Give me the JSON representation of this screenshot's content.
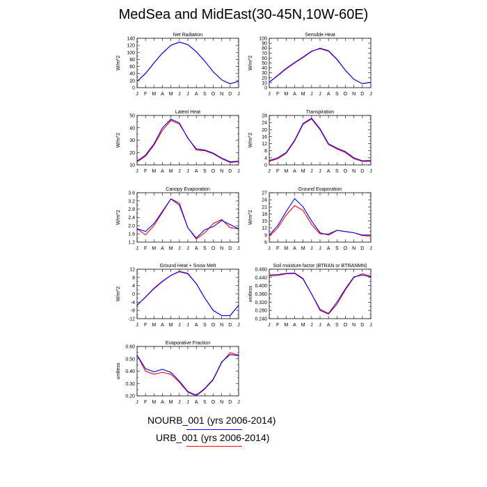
{
  "page": {
    "title": "MedSea and MidEast(30-45N,10W-60E)"
  },
  "legend": [
    {
      "label": "NOURB_001 (yrs 2006-2014)",
      "color": "#0000ff"
    },
    {
      "label": "URB_001 (yrs 2006-2014)",
      "color": "#ff0000"
    }
  ],
  "chart_data": [
    {
      "type": "line",
      "title": "Net Radiation",
      "ylabel": "W/m^2",
      "x": [
        "J",
        "F",
        "M",
        "A",
        "M",
        "J",
        "J",
        "A",
        "S",
        "O",
        "N",
        "D",
        "J"
      ],
      "ylim": [
        0,
        140
      ],
      "yticks": [
        "0",
        "20",
        "40",
        "60",
        "80",
        "100",
        "120",
        "140"
      ],
      "yticks_minor": 1,
      "series": [
        {
          "color": "#ff0000",
          "values": [
            18,
            40,
            70,
            98,
            120,
            129,
            122,
            102,
            75,
            45,
            22,
            11,
            18
          ]
        },
        {
          "color": "#0000ff",
          "values": [
            18,
            40,
            70,
            98,
            120,
            129,
            122,
            102,
            75,
            45,
            22,
            11,
            18
          ]
        }
      ]
    },
    {
      "type": "line",
      "title": "Sensible Heat",
      "ylabel": "W/m^2",
      "x": [
        "J",
        "F",
        "M",
        "A",
        "M",
        "J",
        "J",
        "A",
        "S",
        "O",
        "N",
        "D",
        "J"
      ],
      "ylim": [
        0,
        100
      ],
      "yticks": [
        "0",
        "10",
        "20",
        "30",
        "40",
        "50",
        "60",
        "70",
        "80",
        "90",
        "100"
      ],
      "yticks_minor": 0,
      "series": [
        {
          "color": "#ff0000",
          "values": [
            11,
            24,
            38,
            50,
            61,
            73,
            80,
            75,
            58,
            35,
            17,
            8,
            11
          ]
        },
        {
          "color": "#0000ff",
          "values": [
            11,
            25,
            39,
            51,
            62,
            74,
            79,
            74,
            57,
            35,
            17,
            8,
            11
          ]
        }
      ]
    },
    {
      "type": "line",
      "title": "Latent Heat",
      "ylabel": "W/m^2",
      "x": [
        "J",
        "F",
        "M",
        "A",
        "M",
        "J",
        "J",
        "A",
        "S",
        "O",
        "N",
        "D",
        "J"
      ],
      "ylim": [
        10,
        50
      ],
      "yticks": [
        "10",
        "20",
        "30",
        "40",
        "50"
      ],
      "yticks_minor": 1,
      "series": [
        {
          "color": "#ff0000",
          "values": [
            12.5,
            17,
            26,
            38,
            46,
            43,
            32,
            22,
            21.5,
            19,
            15,
            12,
            12.5
          ]
        },
        {
          "color": "#0000ff",
          "values": [
            13,
            18,
            27,
            40,
            47,
            44,
            31.5,
            23,
            22,
            19.5,
            15.5,
            12.5,
            13
          ]
        }
      ]
    },
    {
      "type": "line",
      "title": "Transpiration",
      "ylabel": "W/m^2",
      "x": [
        "J",
        "F",
        "M",
        "A",
        "M",
        "J",
        "J",
        "A",
        "S",
        "O",
        "N",
        "D",
        "J"
      ],
      "ylim": [
        0,
        28
      ],
      "yticks": [
        "0",
        "4",
        "8",
        "12",
        "16",
        "20",
        "24",
        "28"
      ],
      "yticks_minor": 1,
      "series": [
        {
          "color": "#ff0000",
          "values": [
            2,
            3.5,
            6.5,
            13.5,
            23,
            26,
            20,
            11.5,
            9,
            7,
            3.5,
            2,
            2
          ]
        },
        {
          "color": "#0000ff",
          "values": [
            2.5,
            4,
            7,
            14,
            23.5,
            26.5,
            20.5,
            12,
            9.5,
            7.5,
            4,
            2.3,
            2.5
          ]
        }
      ]
    },
    {
      "type": "line",
      "title": "Canopy Evaporation",
      "ylabel": "W/m^2",
      "x": [
        "J",
        "F",
        "M",
        "A",
        "M",
        "J",
        "J",
        "A",
        "S",
        "O",
        "N",
        "D",
        "J"
      ],
      "ylim": [
        1.2,
        3.6
      ],
      "yticks": [
        "1.2",
        "1.6",
        "2.0",
        "2.4",
        "2.8",
        "3.2",
        "3.6"
      ],
      "yticks_minor": 1,
      "series": [
        {
          "color": "#ff0000",
          "values": [
            1.85,
            1.55,
            2.0,
            2.65,
            3.3,
            3.1,
            1.9,
            1.35,
            1.65,
            2.1,
            2.3,
            1.9,
            1.85
          ]
        },
        {
          "color": "#0000ff",
          "values": [
            1.85,
            1.72,
            2.1,
            2.7,
            3.3,
            3.0,
            1.9,
            1.4,
            1.8,
            1.95,
            2.25,
            2.05,
            1.85
          ]
        }
      ]
    },
    {
      "type": "line",
      "title": "Ground Evaporation",
      "ylabel": "W/m^2",
      "x": [
        "J",
        "F",
        "M",
        "A",
        "M",
        "J",
        "J",
        "A",
        "S",
        "O",
        "N",
        "D",
        "J"
      ],
      "ylim": [
        6,
        27
      ],
      "yticks": [
        "6",
        "9",
        "12",
        "15",
        "18",
        "21",
        "24",
        "27"
      ],
      "yticks_minor": 1,
      "series": [
        {
          "color": "#ff0000",
          "values": [
            8.5,
            12,
            17.5,
            21.5,
            19.5,
            13.5,
            9.5,
            9.5,
            11,
            10.5,
            10,
            8.8,
            8.5
          ]
        },
        {
          "color": "#0000ff",
          "values": [
            9,
            13,
            19,
            24.5,
            21,
            15,
            10,
            9,
            11,
            10.5,
            10,
            9,
            9
          ]
        }
      ]
    },
    {
      "type": "line",
      "title": "Ground Heat + Snow Melt",
      "ylabel": "W/m^2",
      "x": [
        "J",
        "F",
        "M",
        "A",
        "M",
        "J",
        "J",
        "A",
        "S",
        "O",
        "N",
        "D",
        "J"
      ],
      "ylim": [
        -12,
        12
      ],
      "yticks": [
        "-12",
        "-8",
        "-4",
        "0",
        "4",
        "8",
        "12"
      ],
      "yticks_minor": 1,
      "series": [
        {
          "color": "#ff0000",
          "values": [
            -5.5,
            -1.5,
            2.5,
            6,
            9,
            11,
            10,
            5,
            -2,
            -8,
            -10.5,
            -10.5,
            -5.5
          ]
        },
        {
          "color": "#0000ff",
          "values": [
            -5.5,
            -1.5,
            2.8,
            6.2,
            9,
            10.8,
            9.8,
            5,
            -2,
            -8,
            -10.5,
            -10.5,
            -5.5
          ]
        }
      ]
    },
    {
      "type": "line",
      "title": "Soil moisture factor (BTRAN or BTRANMN)",
      "ylabel": "unitless",
      "x": [
        "J",
        "F",
        "M",
        "A",
        "M",
        "J",
        "J",
        "A",
        "S",
        "O",
        "N",
        "D",
        "J"
      ],
      "ylim": [
        0.24,
        0.48
      ],
      "yticks": [
        "0.240",
        "0.280",
        "0.320",
        "0.360",
        "0.400",
        "0.440",
        "0.480"
      ],
      "yticks_minor": 1,
      "series": [
        {
          "color": "#ff0000",
          "values": [
            0.453,
            0.455,
            0.46,
            0.462,
            0.435,
            0.36,
            0.28,
            0.262,
            0.31,
            0.38,
            0.44,
            0.458,
            0.447
          ]
        },
        {
          "color": "#0000ff",
          "values": [
            0.448,
            0.45,
            0.458,
            0.46,
            0.432,
            0.36,
            0.285,
            0.265,
            0.32,
            0.385,
            0.443,
            0.452,
            0.443
          ]
        }
      ]
    },
    {
      "type": "line",
      "title": "Evaporative Fraction",
      "ylabel": "unitless",
      "x": [
        "J",
        "F",
        "M",
        "A",
        "M",
        "J",
        "J",
        "A",
        "S",
        "O",
        "N",
        "D",
        "J"
      ],
      "ylim": [
        0.2,
        0.6
      ],
      "yticks": [
        "0.20",
        "0.30",
        "0.40",
        "0.50",
        "0.60"
      ],
      "yticks_minor": 1,
      "series": [
        {
          "color": "#ff0000",
          "values": [
            0.53,
            0.4,
            0.375,
            0.39,
            0.375,
            0.31,
            0.23,
            0.2,
            0.255,
            0.33,
            0.47,
            0.55,
            0.53
          ]
        },
        {
          "color": "#0000ff",
          "values": [
            0.53,
            0.42,
            0.395,
            0.415,
            0.39,
            0.32,
            0.235,
            0.205,
            0.26,
            0.335,
            0.475,
            0.535,
            0.525
          ]
        }
      ]
    }
  ]
}
